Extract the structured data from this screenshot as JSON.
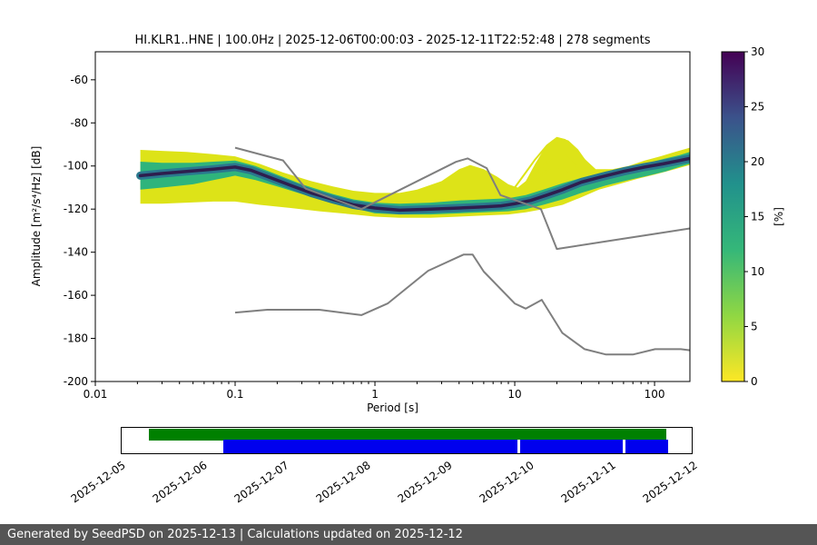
{
  "chart_data": {
    "type": "heatmap",
    "title": "HI.KLR1..HNE | 100.0Hz | 2025-12-06T00:00:03 - 2025-12-11T22:52:48 | 278 segments",
    "xlabel": "Period [s]",
    "ylabel": "Amplitude [m²/s⁴/Hz] [dB]",
    "xscale": "log",
    "xlim": [
      0.01,
      179
    ],
    "ylim": [
      -200,
      -47
    ],
    "xticks": {
      "values": [
        0.01,
        0.1,
        1,
        10,
        100
      ],
      "labels": [
        "0.01",
        "0.1",
        "1",
        "10",
        "100"
      ]
    },
    "yticks": [
      -200,
      -180,
      -160,
      -140,
      -120,
      -100,
      -80,
      -60
    ],
    "colorbar": {
      "label": "[%]",
      "min": 0,
      "max": 30,
      "ticks": [
        0,
        5,
        10,
        15,
        20,
        25,
        30
      ],
      "stops": [
        {
          "pct": 0,
          "color": "#fde725"
        },
        {
          "pct": 20,
          "color": "#90d743"
        },
        {
          "pct": 40,
          "color": "#35b779"
        },
        {
          "pct": 60,
          "color": "#21918c"
        },
        {
          "pct": 80,
          "color": "#3b528b"
        },
        {
          "pct": 100,
          "color": "#440154"
        }
      ]
    },
    "histogram": {
      "yellow_band": {
        "color": "#dde318",
        "upper": [
          [
            0.021,
            -92.5
          ],
          [
            0.03,
            -93
          ],
          [
            0.045,
            -93.5
          ],
          [
            0.07,
            -94.5
          ],
          [
            0.1,
            -95.5
          ],
          [
            0.15,
            -99
          ],
          [
            0.22,
            -103
          ],
          [
            0.35,
            -107
          ],
          [
            0.5,
            -109.5
          ],
          [
            0.7,
            -111.5
          ],
          [
            1,
            -112.5
          ],
          [
            1.5,
            -112.5
          ],
          [
            2,
            -111
          ],
          [
            3,
            -107
          ],
          [
            4,
            -101.5
          ],
          [
            4.8,
            -99.5
          ],
          [
            6,
            -101.5
          ],
          [
            7.5,
            -105
          ],
          [
            9,
            -108.5
          ],
          [
            10.5,
            -110
          ],
          [
            12,
            -107
          ],
          [
            14,
            -99
          ],
          [
            17,
            -90
          ],
          [
            20,
            -86.5
          ],
          [
            23,
            -87.5
          ],
          [
            27,
            -91.5
          ],
          [
            32,
            -97
          ],
          [
            38,
            -101.5
          ],
          [
            50,
            -101.5
          ],
          [
            65,
            -100
          ],
          [
            85,
            -97.5
          ],
          [
            110,
            -95.5
          ],
          [
            140,
            -93.5
          ],
          [
            179,
            -91.5
          ]
        ],
        "lower": [
          [
            0.021,
            -117.5
          ],
          [
            0.03,
            -117.5
          ],
          [
            0.045,
            -117
          ],
          [
            0.07,
            -116.5
          ],
          [
            0.1,
            -116.5
          ],
          [
            0.15,
            -118
          ],
          [
            0.25,
            -119.5
          ],
          [
            0.4,
            -121
          ],
          [
            0.7,
            -122.5
          ],
          [
            1,
            -123.5
          ],
          [
            1.5,
            -124
          ],
          [
            2.5,
            -124
          ],
          [
            4,
            -123.5
          ],
          [
            6,
            -123
          ],
          [
            9,
            -122.5
          ],
          [
            12,
            -121.5
          ],
          [
            16,
            -120
          ],
          [
            22,
            -118
          ],
          [
            30,
            -114.5
          ],
          [
            40,
            -111
          ],
          [
            55,
            -108.5
          ],
          [
            75,
            -106
          ],
          [
            100,
            -104
          ],
          [
            140,
            -101.5
          ],
          [
            179,
            -99.5
          ]
        ]
      },
      "green_band": {
        "color": "#2fb47c",
        "upper": [
          [
            0.021,
            -98
          ],
          [
            0.03,
            -98.5
          ],
          [
            0.05,
            -98.5
          ],
          [
            0.07,
            -98
          ],
          [
            0.1,
            -97.5
          ],
          [
            0.14,
            -100
          ],
          [
            0.2,
            -104
          ],
          [
            0.3,
            -108.5
          ],
          [
            0.5,
            -113
          ],
          [
            0.7,
            -115.5
          ],
          [
            1,
            -117
          ],
          [
            1.5,
            -117.5
          ],
          [
            2.5,
            -117
          ],
          [
            4,
            -116
          ],
          [
            6,
            -115.5
          ],
          [
            9,
            -115
          ],
          [
            12,
            -113.5
          ],
          [
            16,
            -111
          ],
          [
            22,
            -108
          ],
          [
            30,
            -105.5
          ],
          [
            45,
            -102.5
          ],
          [
            65,
            -100.5
          ],
          [
            90,
            -98.5
          ],
          [
            120,
            -96.5
          ],
          [
            150,
            -95
          ],
          [
            179,
            -93.5
          ]
        ],
        "lower": [
          [
            0.021,
            -111
          ],
          [
            0.03,
            -110
          ],
          [
            0.05,
            -108.5
          ],
          [
            0.07,
            -106.5
          ],
          [
            0.1,
            -104.5
          ],
          [
            0.14,
            -106.5
          ],
          [
            0.2,
            -109.5
          ],
          [
            0.3,
            -113
          ],
          [
            0.5,
            -117.5
          ],
          [
            0.7,
            -119.5
          ],
          [
            1,
            -122
          ],
          [
            1.5,
            -122.5
          ],
          [
            2.5,
            -122.5
          ],
          [
            4,
            -122
          ],
          [
            6,
            -121.5
          ],
          [
            9,
            -121
          ],
          [
            12,
            -120
          ],
          [
            16,
            -118
          ],
          [
            22,
            -115.5
          ],
          [
            30,
            -112.5
          ],
          [
            45,
            -109
          ],
          [
            65,
            -106.5
          ],
          [
            90,
            -104.5
          ],
          [
            120,
            -102.5
          ],
          [
            150,
            -100.5
          ],
          [
            179,
            -99
          ]
        ]
      },
      "teal_ridge": {
        "color": "#2a788e",
        "width": 9
      },
      "dark_ridge": {
        "color": "#2e1e4e",
        "width": 3.5,
        "points": [
          [
            0.021,
            -104.5
          ],
          [
            0.03,
            -103.5
          ],
          [
            0.045,
            -102.5
          ],
          [
            0.07,
            -101.5
          ],
          [
            0.1,
            -100.5
          ],
          [
            0.13,
            -102
          ],
          [
            0.18,
            -105.5
          ],
          [
            0.25,
            -109
          ],
          [
            0.35,
            -112.5
          ],
          [
            0.5,
            -115.5
          ],
          [
            0.7,
            -118
          ],
          [
            1,
            -119.5
          ],
          [
            1.5,
            -120.5
          ],
          [
            2.5,
            -120
          ],
          [
            4,
            -119.5
          ],
          [
            6,
            -119
          ],
          [
            8,
            -118.5
          ],
          [
            10,
            -117.5
          ],
          [
            13,
            -116
          ],
          [
            17,
            -113.5
          ],
          [
            22,
            -111
          ],
          [
            30,
            -107.5
          ],
          [
            42,
            -105
          ],
          [
            60,
            -102.5
          ],
          [
            85,
            -100.5
          ],
          [
            115,
            -99
          ],
          [
            150,
            -97.5
          ],
          [
            179,
            -96.5
          ]
        ]
      },
      "outlier_curves": {
        "color": "#dde318",
        "width": 2,
        "curves": [
          [
            [
              10,
              -110
            ],
            [
              12,
              -103
            ],
            [
              14,
              -97
            ],
            [
              17,
              -90.5
            ],
            [
              20,
              -87
            ],
            [
              24,
              -88.5
            ],
            [
              28,
              -92.5
            ],
            [
              33,
              -99
            ],
            [
              38,
              -105
            ]
          ],
          [
            [
              11,
              -112
            ],
            [
              13,
              -107
            ],
            [
              16,
              -100
            ],
            [
              19,
              -95.5
            ],
            [
              23,
              -95
            ],
            [
              27,
              -99.5
            ],
            [
              31,
              -105
            ],
            [
              35,
              -110
            ]
          ],
          [
            [
              12,
              -110
            ],
            [
              15,
              -105
            ],
            [
              18,
              -101
            ],
            [
              22,
              -100.5
            ],
            [
              26,
              -104
            ],
            [
              30,
              -109
            ]
          ]
        ]
      }
    },
    "noise_models": {
      "color": "#7f7f7f",
      "high": [
        [
          0.1,
          -91.5
        ],
        [
          0.22,
          -97.4
        ],
        [
          0.32,
          -110.5
        ],
        [
          0.8,
          -120
        ],
        [
          3.8,
          -98.1
        ],
        [
          4.6,
          -96.5
        ],
        [
          6.3,
          -101
        ],
        [
          7.9,
          -113.5
        ],
        [
          15.4,
          -120
        ],
        [
          20,
          -138.5
        ],
        [
          50,
          -134.5
        ],
        [
          100,
          -131.5
        ],
        [
          179,
          -129
        ]
      ],
      "low": [
        [
          0.1,
          -168
        ],
        [
          0.17,
          -166.7
        ],
        [
          0.4,
          -166.7
        ],
        [
          0.8,
          -169.2
        ],
        [
          1.24,
          -163.7
        ],
        [
          2.4,
          -148.6
        ],
        [
          4.3,
          -141.1
        ],
        [
          5,
          -141.1
        ],
        [
          6,
          -149
        ],
        [
          10,
          -163.8
        ],
        [
          12,
          -166.2
        ],
        [
          15.6,
          -162.1
        ],
        [
          21.9,
          -177.5
        ],
        [
          31.6,
          -185
        ],
        [
          45,
          -187.5
        ],
        [
          70,
          -187.5
        ],
        [
          101,
          -185
        ],
        [
          154,
          -185
        ],
        [
          179,
          -185.5
        ]
      ]
    }
  },
  "timeline": {
    "dates": [
      "2025-12-05",
      "2025-12-06",
      "2025-12-07",
      "2025-12-08",
      "2025-12-09",
      "2025-12-10",
      "2025-12-11",
      "2025-12-12"
    ],
    "bars": [
      {
        "name": "data-availability",
        "color": "#008000",
        "row": "top",
        "start_pct": 4.8,
        "end_pct": 95.6
      },
      {
        "name": "psd-coverage",
        "color": "#0000ee",
        "row": "bottom",
        "start_pct": 17.8,
        "end_pct": 95.9
      }
    ],
    "gaps_pct": [
      69.5,
      87.9
    ]
  },
  "footer": {
    "text": "Generated by SeedPSD on 2025-12-13 | Calculations updated on 2025-12-12"
  }
}
